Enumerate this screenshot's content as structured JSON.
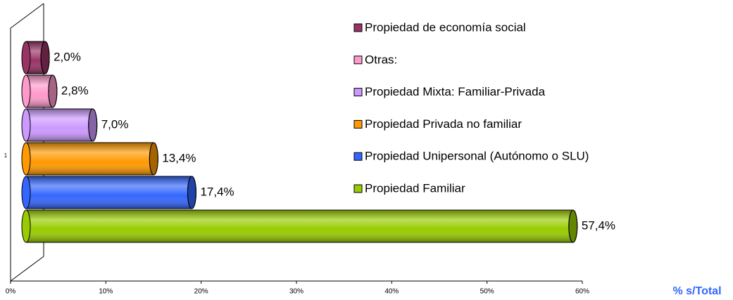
{
  "chart_data": {
    "type": "bar",
    "orientation": "horizontal",
    "categories": [
      "1"
    ],
    "series": [
      {
        "name": "Propiedad de economía social",
        "color": "#993366",
        "values": [
          2.0
        ],
        "value_labels": [
          "2,0%"
        ]
      },
      {
        "name": "Otras:",
        "color": "#ff99cc",
        "values": [
          2.8
        ],
        "value_labels": [
          "2,8%"
        ]
      },
      {
        "name": "Propiedad Mixta: Familiar-Privada",
        "color": "#cc99ff",
        "values": [
          7.0
        ],
        "value_labels": [
          "7,0%"
        ]
      },
      {
        "name": "Propiedad Privada no familiar",
        "color": "#ff9900",
        "values": [
          13.4
        ],
        "value_labels": [
          "13,4%"
        ]
      },
      {
        "name": "Propiedad Unipersonal (Autónomo o SLU)",
        "color": "#3366ff",
        "values": [
          17.4
        ],
        "value_labels": [
          "17,4%"
        ]
      },
      {
        "name": "Propiedad Familiar",
        "color": "#99cc00",
        "values": [
          57.4
        ],
        "value_labels": [
          "57,4%"
        ]
      }
    ],
    "xlabel": "% s/Total",
    "xlim": [
      0,
      60
    ],
    "xticks": [
      {
        "value": 0,
        "label": "0%"
      },
      {
        "value": 10,
        "label": "10%"
      },
      {
        "value": 20,
        "label": "20%"
      },
      {
        "value": 30,
        "label": "30%"
      },
      {
        "value": 40,
        "label": "40%"
      },
      {
        "value": 50,
        "label": "50%"
      },
      {
        "value": 60,
        "label": "60%"
      }
    ],
    "legend": "right"
  }
}
